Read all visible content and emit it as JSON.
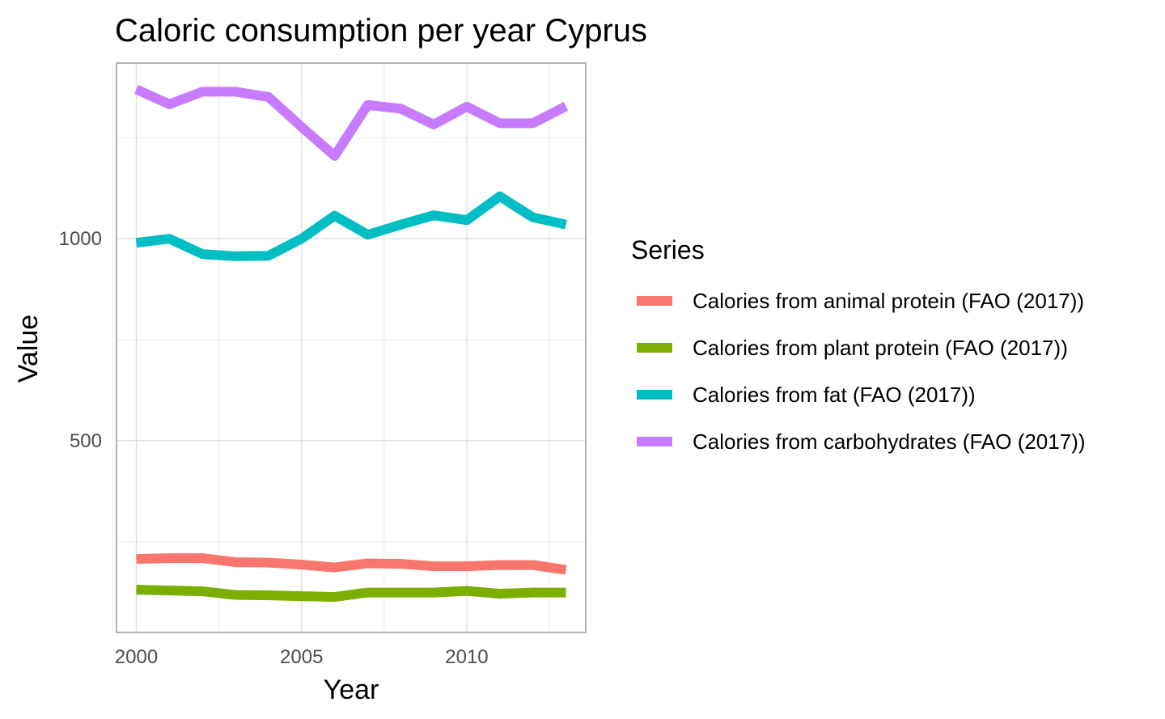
{
  "chart_data": {
    "type": "line",
    "title": "Caloric consumption per year Cyprus",
    "xlabel": "Year",
    "ylabel": "Value",
    "xlim": [
      1999.4,
      2013.6
    ],
    "ylim": [
      25,
      1435
    ],
    "x_ticks": [
      2000,
      2005,
      2010
    ],
    "x_minor_ticks": [
      2002.5,
      2007.5,
      2012.5
    ],
    "y_ticks": [
      500,
      1000
    ],
    "y_minor_ticks": [
      250,
      750,
      1250
    ],
    "grid": true,
    "legend": {
      "title": "Series",
      "position": "right"
    },
    "x": [
      2000,
      2001,
      2002,
      2003,
      2004,
      2005,
      2006,
      2007,
      2008,
      2009,
      2010,
      2011,
      2012,
      2013
    ],
    "series": [
      {
        "name": "Calories from animal protein (FAO (2017))",
        "color": "#F8766D",
        "values": [
          207,
          209,
          209,
          199,
          198,
          193,
          186,
          196,
          195,
          189,
          189,
          192,
          192,
          180
        ]
      },
      {
        "name": "Calories from plant protein (FAO (2017))",
        "color": "#7CAE00",
        "values": [
          131,
          129,
          127,
          118,
          117,
          115,
          113,
          124,
          124,
          124,
          128,
          121,
          124,
          124
        ]
      },
      {
        "name": "Calories from fat (FAO (2017))",
        "color": "#00BFC4",
        "values": [
          990,
          1000,
          962,
          957,
          958,
          1000,
          1057,
          1010,
          1035,
          1058,
          1046,
          1105,
          1053,
          1035
        ]
      },
      {
        "name": "Calories from carbohydrates (FAO (2017))",
        "color": "#C77CFF",
        "values": [
          1370,
          1333,
          1364,
          1364,
          1351,
          1277,
          1205,
          1331,
          1322,
          1283,
          1327,
          1286,
          1286,
          1328
        ]
      }
    ]
  }
}
